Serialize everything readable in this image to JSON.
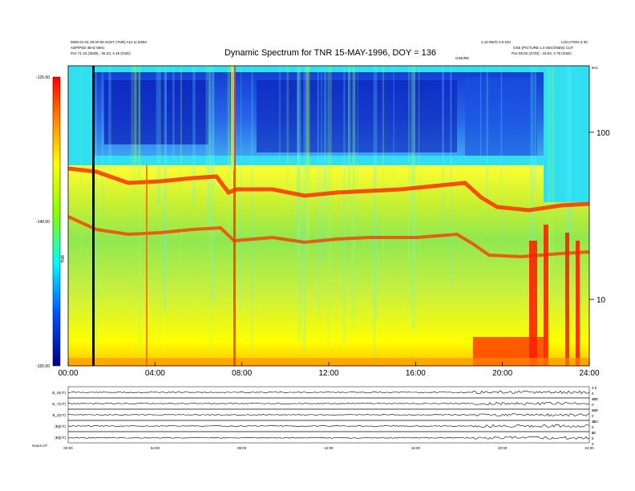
{
  "header": {
    "left_line1": "0000-01-01 00:00:00 SCET (TNR) A12 to 03/8A",
    "left_line2": "ASP/PSD 4kHz 5kHz",
    "left_line3": "Pos    71.43 (3538), -45.23, 4.18 (GSE)",
    "right_line1": "1.10 RE/D 3.0 DIV",
    "right_line2": "LOCATION 3.30",
    "right_line3": "GSE (PICTURE 1.0 SECONDS) CUT",
    "right_line4": "Pos    59.82 (3733), -43.53, 4.79 (GSE)",
    "center_label": "GSE/RE",
    "units_right": "kHz"
  },
  "chart_data": [
    {
      "type": "heatmap",
      "title": "Dynamic Spectrum for TNR 15-MAY-1996, DOY = 136",
      "x_ticks": [
        "00:00",
        "04:00",
        "08:00",
        "12:00",
        "16:00",
        "20:00",
        "24:00"
      ],
      "x_range_hours": [
        0,
        24
      ],
      "y_scale": "log",
      "y_ticks": [
        "100",
        "10"
      ],
      "y_tick_values": [
        100,
        10
      ],
      "y_range_khz": [
        4,
        250
      ],
      "colorbar": {
        "ticks": [
          "-125.00",
          "-140.00",
          "-155.00"
        ],
        "tick_values": [
          -125,
          -140,
          -155
        ],
        "label": "TNR",
        "colors": [
          "#ff0000",
          "#ffa500",
          "#ffff00",
          "#7fff00",
          "#00e0e0",
          "#0060ff",
          "#000080"
        ]
      },
      "grid": false
    },
    {
      "type": "line",
      "panels": [
        {
          "label": "B_X(nT)",
          "right_ticks": [
            "3.0",
            "0",
            "-3.0"
          ]
        },
        {
          "label": "B_Y(nT)",
          "right_ticks": [
            "3.0",
            "0",
            "-3.0"
          ]
        },
        {
          "label": "B_Z(nT)",
          "right_ticks": [
            "3.0",
            "0",
            "-3.0"
          ]
        },
        {
          "label": "|B|(nT)",
          "right_ticks": [
            "10",
            "5",
            "0"
          ]
        },
        {
          "label": "|B|(nT)",
          "right_ticks": [
            "10",
            "5",
            "0"
          ]
        }
      ],
      "x_ticks": [
        "00:00",
        "04:00",
        "08:00",
        "12:00",
        "16:00",
        "20:00",
        "24:00"
      ],
      "footer_left": "Hours  UT"
    }
  ]
}
